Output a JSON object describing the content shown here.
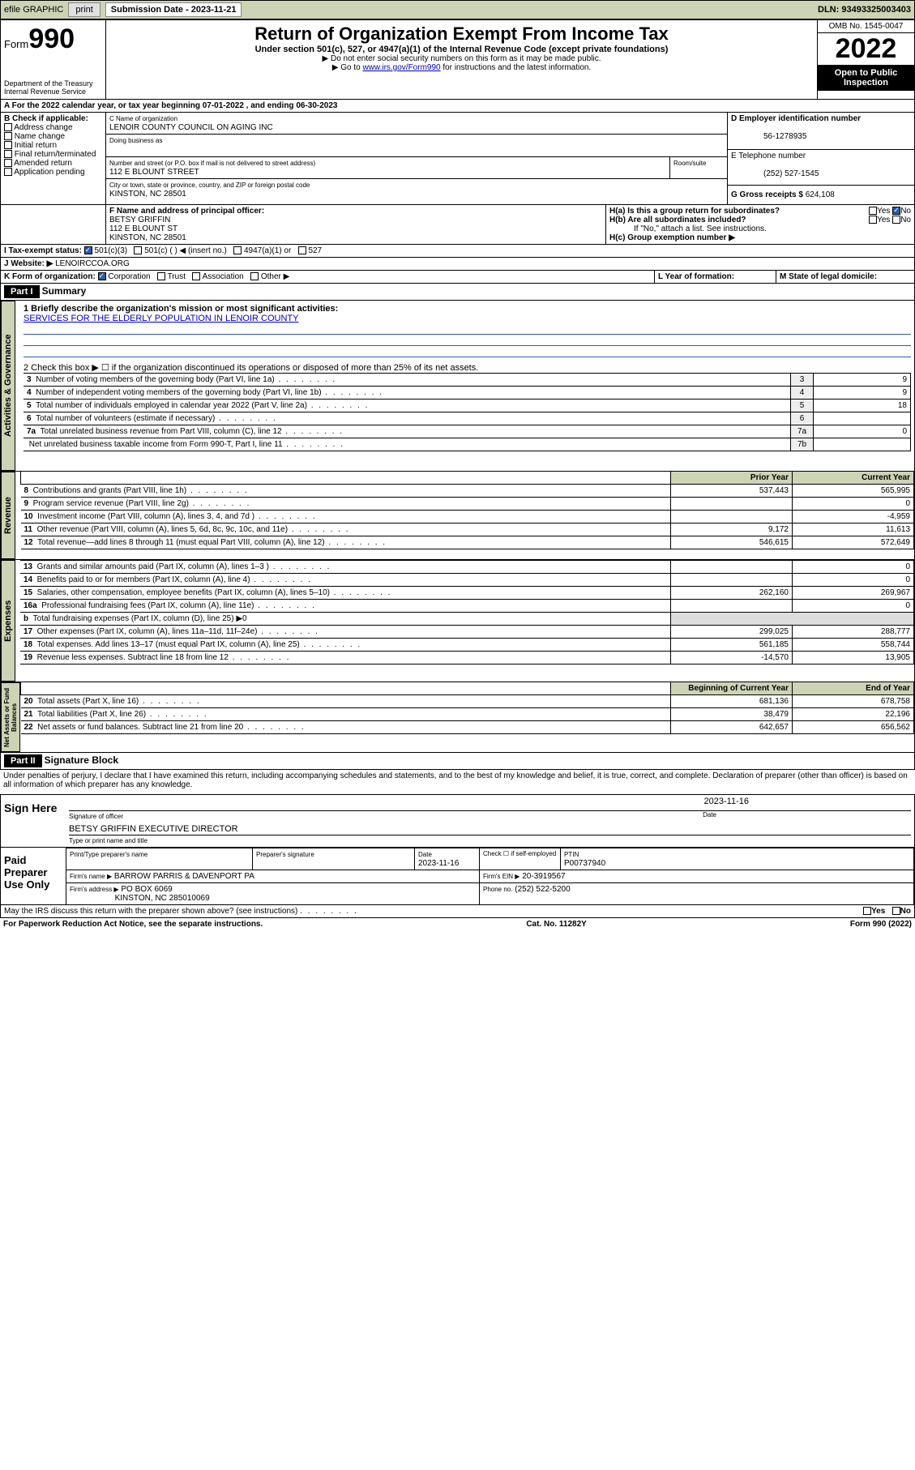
{
  "topbar": {
    "efile": "efile GRAPHIC",
    "print": "print",
    "subdate_lbl": "Submission Date - 2023-11-21",
    "dln_lbl": "DLN: 93493325003403"
  },
  "header": {
    "form_prefix": "Form",
    "form_num": "990",
    "dept": "Department of the Treasury\nInternal Revenue Service",
    "title": "Return of Organization Exempt From Income Tax",
    "sub": "Under section 501(c), 527, or 4947(a)(1) of the Internal Revenue Code (except private foundations)",
    "note1": "▶ Do not enter social security numbers on this form as it may be made public.",
    "note2_pre": "▶ Go to ",
    "note2_link": "www.irs.gov/Form990",
    "note2_post": " for instructions and the latest information.",
    "omb": "OMB No. 1545-0047",
    "year": "2022",
    "inspect": "Open to Public Inspection"
  },
  "a_line": "A For the 2022 calendar year, or tax year beginning 07-01-2022   , and ending 06-30-2023",
  "b": {
    "label": "B Check if applicable:",
    "opts": [
      "Address change",
      "Name change",
      "Initial return",
      "Final return/terminated",
      "Amended return",
      "Application pending"
    ]
  },
  "c": {
    "name_lbl": "C Name of organization",
    "name": "LENOIR COUNTY COUNCIL ON AGING INC",
    "dba_lbl": "Doing business as",
    "addr_lbl": "Number and street (or P.O. box if mail is not delivered to street address)",
    "room_lbl": "Room/suite",
    "addr": "112 E BLOUNT STREET",
    "city_lbl": "City or town, state or province, country, and ZIP or foreign postal code",
    "city": "KINSTON, NC  28501"
  },
  "d": {
    "lbl": "D Employer identification number",
    "val": "56-1278935"
  },
  "e": {
    "lbl": "E Telephone number",
    "val": "(252) 527-1545"
  },
  "g": {
    "lbl": "G Gross receipts $",
    "val": "624,108"
  },
  "f": {
    "lbl": "F  Name and address of principal officer:",
    "name": "BETSY GRIFFIN",
    "addr1": "112 E BLOUNT ST",
    "addr2": "KINSTON, NC  28501"
  },
  "h": {
    "a": "H(a)  Is this a group return for subordinates?",
    "b": "H(b)  Are all subordinates included?",
    "note": "If \"No,\" attach a list. See instructions.",
    "c": "H(c)  Group exemption number ▶",
    "yes": "Yes",
    "no": "No"
  },
  "i": {
    "lbl": "I   Tax-exempt status:",
    "opts": [
      "501(c)(3)",
      "501(c) (  ) ◀ (insert no.)",
      "4947(a)(1) or",
      "527"
    ]
  },
  "j": {
    "lbl": "J   Website: ▶",
    "val": " LENOIRCCOA.ORG"
  },
  "k": {
    "lbl": "K Form of organization:",
    "opts": [
      "Corporation",
      "Trust",
      "Association",
      "Other ▶"
    ]
  },
  "l": {
    "lbl": "L Year of formation:"
  },
  "m": {
    "lbl": "M State of legal domicile:"
  },
  "part1": {
    "hdr": "Part I",
    "title": "Summary",
    "q1": "1  Briefly describe the organization's mission or most significant activities:",
    "q1v": "SERVICES FOR THE ELDERLY POPULATION IN LENOIR COUNTY",
    "q2": "2   Check this box ▶ ☐  if the organization discontinued its operations or disposed of more than 25% of its net assets.",
    "rows_gov": [
      {
        "n": "3",
        "t": "Number of voting members of the governing body (Part VI, line 1a)",
        "v": "9"
      },
      {
        "n": "4",
        "t": "Number of independent voting members of the governing body (Part VI, line 1b)",
        "v": "9"
      },
      {
        "n": "5",
        "t": "Total number of individuals employed in calendar year 2022 (Part V, line 2a)",
        "v": "18"
      },
      {
        "n": "6",
        "t": "Total number of volunteers (estimate if necessary)",
        "v": ""
      },
      {
        "n": "7a",
        "t": "Total unrelated business revenue from Part VIII, column (C), line 12",
        "v": "0"
      },
      {
        "n": "",
        "t": "Net unrelated business taxable income from Form 990-T, Part I, line 11",
        "lab": "7b",
        "v": ""
      }
    ],
    "col_prior": "Prior Year",
    "col_curr": "Current Year",
    "rows_rev": [
      {
        "n": "8",
        "t": "Contributions and grants (Part VIII, line 1h)",
        "p": "537,443",
        "c": "565,995"
      },
      {
        "n": "9",
        "t": "Program service revenue (Part VIII, line 2g)",
        "p": "",
        "c": "0"
      },
      {
        "n": "10",
        "t": "Investment income (Part VIII, column (A), lines 3, 4, and 7d )",
        "p": "",
        "c": "-4,959"
      },
      {
        "n": "11",
        "t": "Other revenue (Part VIII, column (A), lines 5, 6d, 8c, 9c, 10c, and 11e)",
        "p": "9,172",
        "c": "11,613"
      },
      {
        "n": "12",
        "t": "Total revenue—add lines 8 through 11 (must equal Part VIII, column (A), line 12)",
        "p": "546,615",
        "c": "572,649"
      }
    ],
    "rows_exp": [
      {
        "n": "13",
        "t": "Grants and similar amounts paid (Part IX, column (A), lines 1–3 )",
        "p": "",
        "c": "0"
      },
      {
        "n": "14",
        "t": "Benefits paid to or for members (Part IX, column (A), line 4)",
        "p": "",
        "c": "0"
      },
      {
        "n": "15",
        "t": "Salaries, other compensation, employee benefits (Part IX, column (A), lines 5–10)",
        "p": "262,160",
        "c": "269,967"
      },
      {
        "n": "16a",
        "t": "Professional fundraising fees (Part IX, column (A), line 11e)",
        "p": "",
        "c": "0"
      },
      {
        "n": "b",
        "t": "Total fundraising expenses (Part IX, column (D), line 25) ▶0",
        "p": "—",
        "c": "—"
      },
      {
        "n": "17",
        "t": "Other expenses (Part IX, column (A), lines 11a–11d, 11f–24e)",
        "p": "299,025",
        "c": "288,777"
      },
      {
        "n": "18",
        "t": "Total expenses. Add lines 13–17 (must equal Part IX, column (A), line 25)",
        "p": "561,185",
        "c": "558,744"
      },
      {
        "n": "19",
        "t": "Revenue less expenses. Subtract line 18 from line 12",
        "p": "-14,570",
        "c": "13,905"
      }
    ],
    "col_boy": "Beginning of Current Year",
    "col_eoy": "End of Year",
    "rows_bal": [
      {
        "n": "20",
        "t": "Total assets (Part X, line 16)",
        "p": "681,136",
        "c": "678,758"
      },
      {
        "n": "21",
        "t": "Total liabilities (Part X, line 26)",
        "p": "38,479",
        "c": "22,196"
      },
      {
        "n": "22",
        "t": "Net assets or fund balances. Subtract line 21 from line 20",
        "p": "642,657",
        "c": "656,562"
      }
    ],
    "tabs": {
      "gov": "Activities & Governance",
      "rev": "Revenue",
      "exp": "Expenses",
      "bal": "Net Assets or Fund Balances"
    }
  },
  "part2": {
    "hdr": "Part II",
    "title": "Signature Block",
    "decl": "Under penalties of perjury, I declare that I have examined this return, including accompanying schedules and statements, and to the best of my knowledge and belief, it is true, correct, and complete. Declaration of preparer (other than officer) is based on all information of which preparer has any knowledge.",
    "sign_here": "Sign Here",
    "sig_officer": "Signature of officer",
    "date_lbl": "Date",
    "sig_date": "2023-11-16",
    "officer": "BETSY GRIFFIN  EXECUTIVE DIRECTOR",
    "type_name": "Type or print name and title",
    "paid": "Paid Preparer Use Only",
    "prep_name_lbl": "Print/Type preparer's name",
    "prep_sig_lbl": "Preparer's signature",
    "prep_date": "2023-11-16",
    "self_emp": "Check ☐ if self-employed",
    "ptin_lbl": "PTIN",
    "ptin": "P00737940",
    "firm_name_lbl": "Firm's name    ▶",
    "firm_name": "BARROW PARRIS & DAVENPORT PA",
    "firm_ein_lbl": "Firm's EIN ▶",
    "firm_ein": "20-3919567",
    "firm_addr_lbl": "Firm's address ▶",
    "firm_addr1": "PO BOX 6069",
    "firm_addr2": "KINSTON, NC  285010069",
    "phone_lbl": "Phone no.",
    "phone": "(252) 522-5200",
    "discuss": "May the IRS discuss this return with the preparer shown above? (see instructions)"
  },
  "footer": {
    "pra": "For Paperwork Reduction Act Notice, see the separate instructions.",
    "cat": "Cat. No. 11282Y",
    "form": "Form 990 (2022)"
  }
}
